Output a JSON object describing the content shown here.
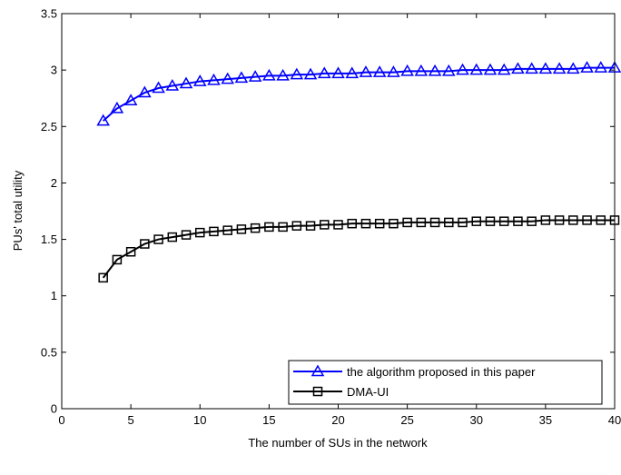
{
  "chart_data": {
    "type": "line",
    "title": "",
    "xlabel": "The number of SUs in the network",
    "ylabel": "PUs' total utility",
    "xlim": [
      0,
      40
    ],
    "ylim": [
      0,
      3.5
    ],
    "xticks": [
      0,
      5,
      10,
      15,
      20,
      25,
      30,
      35,
      40
    ],
    "xtick_labels": [
      "0",
      "5",
      "10",
      "15",
      "20",
      "25",
      "30",
      "35",
      "40"
    ],
    "yticks": [
      0,
      0.5,
      1,
      1.5,
      2,
      2.5,
      3,
      3.5
    ],
    "ytick_labels": [
      "0",
      "0.5",
      "1",
      "1.5",
      "2",
      "2.5",
      "3",
      "3.5"
    ],
    "grid": false,
    "legend_position": "bottom-right",
    "x": [
      3,
      4,
      5,
      6,
      7,
      8,
      9,
      10,
      11,
      12,
      13,
      14,
      15,
      16,
      17,
      18,
      19,
      20,
      21,
      22,
      23,
      24,
      25,
      26,
      27,
      28,
      29,
      30,
      31,
      32,
      33,
      34,
      35,
      36,
      37,
      38,
      39,
      40
    ],
    "series": [
      {
        "name": "the algorithm proposed in this paper",
        "color": "#0000ff",
        "marker": "triangle",
        "values": [
          2.55,
          2.66,
          2.73,
          2.8,
          2.84,
          2.86,
          2.88,
          2.9,
          2.91,
          2.92,
          2.93,
          2.94,
          2.95,
          2.95,
          2.96,
          2.96,
          2.97,
          2.97,
          2.97,
          2.98,
          2.98,
          2.98,
          2.99,
          2.99,
          2.99,
          2.99,
          3.0,
          3.0,
          3.0,
          3.0,
          3.01,
          3.01,
          3.01,
          3.01,
          3.01,
          3.02,
          3.02,
          3.02
        ]
      },
      {
        "name": "DMA-UI",
        "color": "#000000",
        "marker": "square",
        "values": [
          1.16,
          1.32,
          1.39,
          1.46,
          1.5,
          1.52,
          1.54,
          1.56,
          1.57,
          1.58,
          1.59,
          1.6,
          1.61,
          1.61,
          1.62,
          1.62,
          1.63,
          1.63,
          1.64,
          1.64,
          1.64,
          1.64,
          1.65,
          1.65,
          1.65,
          1.65,
          1.65,
          1.66,
          1.66,
          1.66,
          1.66,
          1.66,
          1.67,
          1.67,
          1.67,
          1.67,
          1.67,
          1.67
        ]
      }
    ]
  }
}
